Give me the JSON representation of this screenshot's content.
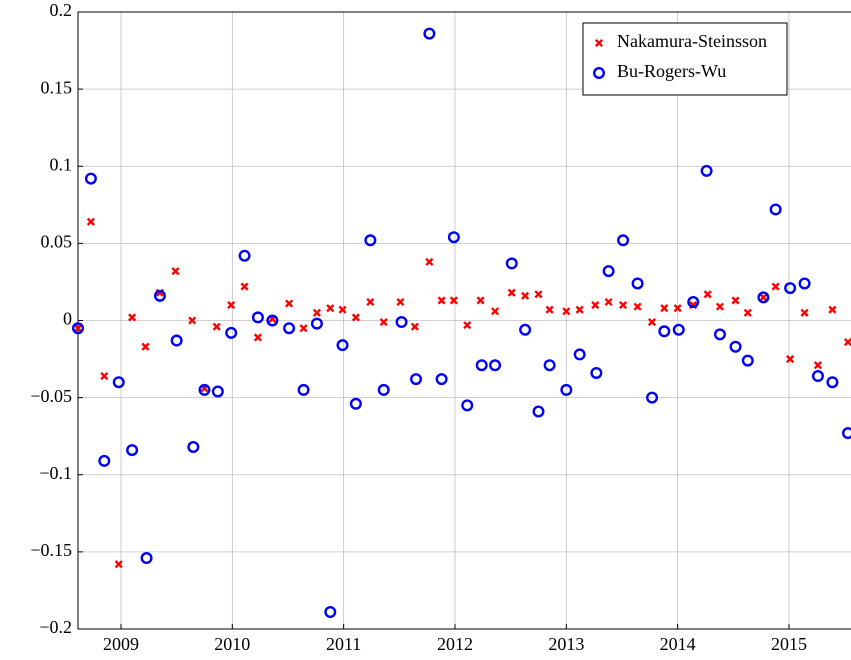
{
  "chart_data": {
    "type": "scatter",
    "xlim": [
      2008.614,
      2015.557
    ],
    "xticks": [
      2009,
      2010,
      2011,
      2012,
      2013,
      2014,
      2015
    ],
    "ylim": [
      -0.2,
      0.2
    ],
    "yticks": [
      {
        "value": -0.2,
        "label": "−0.2"
      },
      {
        "value": -0.15,
        "label": "−0.15"
      },
      {
        "value": -0.1,
        "label": "−0.1"
      },
      {
        "value": -0.05,
        "label": "−0.05"
      },
      0,
      0.05,
      0.1,
      0.15,
      0.2
    ],
    "grid": true,
    "legend": "upper-right",
    "series": [
      {
        "name": "Nakamura-Steinsson",
        "color": "#ff0000",
        "marker": "x",
        "x": [
          2008.614,
          2008.73,
          2008.85,
          2008.98,
          2009.1,
          2009.22,
          2009.35,
          2009.49,
          2009.64,
          2009.75,
          2009.86,
          2009.99,
          2010.11,
          2010.23,
          2010.36,
          2010.51,
          2010.64,
          2010.76,
          2010.88,
          2010.99,
          2011.11,
          2011.24,
          2011.36,
          2011.51,
          2011.64,
          2011.77,
          2011.88,
          2011.99,
          2012.11,
          2012.23,
          2012.36,
          2012.51,
          2012.63,
          2012.75,
          2012.85,
          2013.0,
          2013.12,
          2013.26,
          2013.38,
          2013.51,
          2013.64,
          2013.77,
          2013.88,
          2014.0,
          2014.14,
          2014.27,
          2014.38,
          2014.52,
          2014.63,
          2014.77,
          2014.88,
          2015.01,
          2015.14,
          2015.26,
          2015.39,
          2015.53
        ],
        "values": [
          -0.005,
          0.064,
          -0.036,
          -0.158,
          0.002,
          -0.017,
          0.018,
          0.032,
          0.0,
          -0.044,
          -0.004,
          0.01,
          0.022,
          -0.011,
          0.001,
          0.011,
          -0.005,
          0.005,
          0.008,
          0.007,
          0.002,
          0.012,
          -0.001,
          0.012,
          -0.004,
          0.038,
          0.013,
          0.013,
          -0.003,
          0.013,
          0.006,
          0.018,
          0.016,
          0.017,
          0.007,
          0.006,
          0.007,
          0.01,
          0.012,
          0.01,
          0.009,
          -0.001,
          0.008,
          0.008,
          0.01,
          0.017,
          0.009,
          0.013,
          0.005,
          0.015,
          0.022,
          -0.025,
          0.005,
          -0.029,
          0.007,
          -0.014
        ]
      },
      {
        "name": "Bu-Rogers-Wu",
        "color": "#0000ff",
        "marker": "o",
        "x": [
          2008.614,
          2008.73,
          2008.85,
          2008.98,
          2009.1,
          2009.23,
          2009.35,
          2009.5,
          2009.65,
          2009.75,
          2009.87,
          2009.99,
          2010.11,
          2010.23,
          2010.36,
          2010.51,
          2010.64,
          2010.76,
          2010.88,
          2010.99,
          2011.11,
          2011.24,
          2011.36,
          2011.52,
          2011.65,
          2011.77,
          2011.88,
          2011.99,
          2012.11,
          2012.24,
          2012.36,
          2012.51,
          2012.63,
          2012.75,
          2012.85,
          2013.0,
          2013.12,
          2013.27,
          2013.38,
          2013.51,
          2013.64,
          2013.77,
          2013.88,
          2014.01,
          2014.14,
          2014.26,
          2014.38,
          2014.52,
          2014.63,
          2014.77,
          2014.88,
          2015.01,
          2015.14,
          2015.26,
          2015.39,
          2015.53
        ],
        "values": [
          -0.005,
          0.092,
          -0.091,
          -0.04,
          -0.084,
          -0.154,
          0.016,
          -0.013,
          -0.082,
          -0.045,
          -0.046,
          -0.008,
          0.042,
          0.002,
          0.0,
          -0.005,
          -0.045,
          -0.002,
          -0.189,
          -0.016,
          -0.054,
          0.052,
          -0.045,
          -0.001,
          -0.038,
          0.186,
          -0.038,
          0.054,
          -0.055,
          -0.029,
          -0.029,
          0.037,
          -0.006,
          -0.059,
          -0.029,
          -0.045,
          -0.022,
          -0.034,
          0.032,
          0.052,
          0.024,
          -0.05,
          -0.007,
          -0.006,
          0.012,
          0.097,
          -0.009,
          -0.017,
          -0.026,
          0.015,
          0.072,
          0.021,
          0.024,
          -0.036,
          -0.04,
          -0.073
        ]
      }
    ]
  }
}
